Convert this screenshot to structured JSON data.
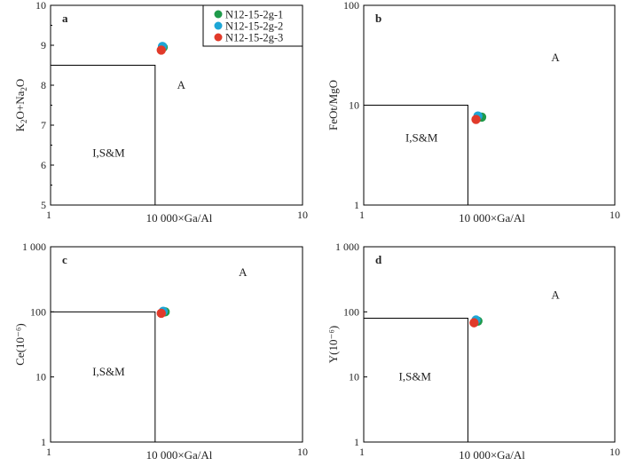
{
  "colors": {
    "series1": "#1f9a4a",
    "series2": "#1da6d6",
    "series3": "#e13a2a",
    "axis": "#000000"
  },
  "legend": {
    "placement": "top-right of panel a",
    "items": [
      "N12-15-2g-1",
      "N12-15-2g-2",
      "N12-15-2g-3"
    ]
  },
  "chart_data": [
    {
      "type": "scatter",
      "panel_label": "a",
      "xlabel": "10 000×Ga/Al",
      "ylabel_html": "K₂O+Na₂O",
      "x_scale": "log",
      "xlim": [
        1,
        10
      ],
      "y_scale": "linear",
      "ylim": [
        5,
        10
      ],
      "x_ticks": [
        "1",
        "10"
      ],
      "y_ticks": [
        "5",
        "6",
        "7",
        "8",
        "9",
        "10"
      ],
      "region_labels": [
        "A",
        "I,S&M"
      ],
      "boundary": {
        "x": 2.6,
        "y": 8.5
      },
      "series": [
        {
          "name": "N12-15-2g-1",
          "points": [
            [
              2.8,
              8.95
            ]
          ]
        },
        {
          "name": "N12-15-2g-2",
          "points": [
            [
              2.78,
              8.97
            ]
          ]
        },
        {
          "name": "N12-15-2g-3",
          "points": [
            [
              2.75,
              8.88
            ]
          ]
        }
      ]
    },
    {
      "type": "scatter",
      "panel_label": "b",
      "xlabel": "10 000×Ga/Al",
      "ylabel": "FeOt/MgO",
      "x_scale": "log",
      "xlim": [
        1,
        10
      ],
      "y_scale": "log",
      "ylim": [
        1,
        100
      ],
      "x_ticks": [
        "1",
        "10"
      ],
      "y_ticks": [
        "1",
        "10",
        "100"
      ],
      "region_labels": [
        "A",
        "I,S&M"
      ],
      "boundary": {
        "x": 2.6,
        "y": 10
      },
      "series": [
        {
          "name": "N12-15-2g-1",
          "points": [
            [
              2.95,
              7.6
            ]
          ]
        },
        {
          "name": "N12-15-2g-2",
          "points": [
            [
              2.85,
              7.8
            ]
          ]
        },
        {
          "name": "N12-15-2g-3",
          "points": [
            [
              2.8,
              7.2
            ]
          ]
        }
      ]
    },
    {
      "type": "scatter",
      "panel_label": "c",
      "xlabel": "10 000×Ga/Al",
      "ylabel": "Ce(10⁻⁶)",
      "x_scale": "log",
      "xlim": [
        1,
        10
      ],
      "y_scale": "log",
      "ylim": [
        1,
        1000
      ],
      "x_ticks": [
        "1",
        "10"
      ],
      "y_ticks": [
        "1",
        "10",
        "100",
        "1 000"
      ],
      "region_labels": [
        "A",
        "I,S&M"
      ],
      "boundary": {
        "x": 2.6,
        "y": 100
      },
      "series": [
        {
          "name": "N12-15-2g-1",
          "points": [
            [
              2.85,
              100
            ]
          ]
        },
        {
          "name": "N12-15-2g-2",
          "points": [
            [
              2.8,
              102
            ]
          ]
        },
        {
          "name": "N12-15-2g-3",
          "points": [
            [
              2.75,
              95
            ]
          ]
        }
      ]
    },
    {
      "type": "scatter",
      "panel_label": "d",
      "xlabel": "10 000×Ga/Al",
      "ylabel": "Y(10⁻⁶)",
      "x_scale": "log",
      "xlim": [
        1,
        10
      ],
      "y_scale": "log",
      "ylim": [
        1,
        1000
      ],
      "x_ticks": [
        "1",
        "10"
      ],
      "y_ticks": [
        "1",
        "10",
        "100",
        "1 000"
      ],
      "region_labels": [
        "A",
        "I,S&M"
      ],
      "boundary": {
        "x": 2.6,
        "y": 80
      },
      "series": [
        {
          "name": "N12-15-2g-1",
          "points": [
            [
              2.85,
              72
            ]
          ]
        },
        {
          "name": "N12-15-2g-2",
          "points": [
            [
              2.8,
              75
            ]
          ]
        },
        {
          "name": "N12-15-2g-3",
          "points": [
            [
              2.75,
              68
            ]
          ]
        }
      ]
    }
  ]
}
